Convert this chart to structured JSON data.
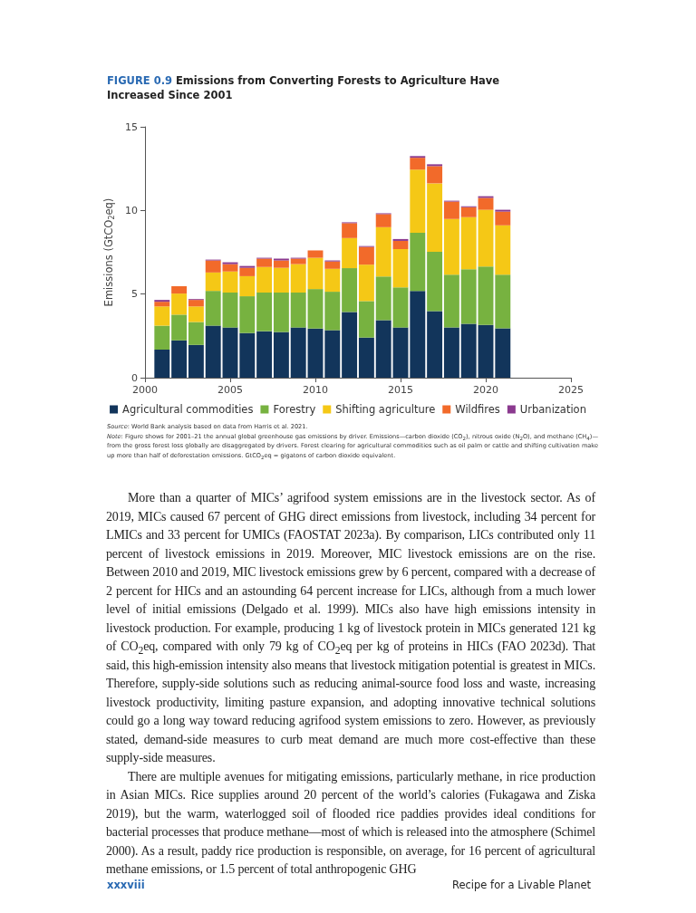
{
  "chart_data": {
    "type": "bar",
    "title": "FIGURE 0.9 Emissions from Converting Forests to Agriculture Have Increased Since 2001",
    "ylabel": "Emissions (GtCO$_{2}$eq)",
    "x": [
      2001,
      2002,
      2003,
      2004,
      2005,
      2006,
      2007,
      2008,
      2009,
      2010,
      2011,
      2012,
      2013,
      2014,
      2015,
      2016,
      2017,
      2018,
      2019,
      2020,
      2021
    ],
    "xlim": [
      2000,
      2025
    ],
    "xticks": [
      2000,
      2005,
      2010,
      2015,
      2020,
      2025
    ],
    "ylim": [
      0,
      15
    ],
    "yticks": [
      0,
      5,
      10,
      15
    ],
    "stacked": true,
    "grid": false,
    "legend": "bottom",
    "series": [
      {
        "name": "Agricultural commodities",
        "color": "#12355b",
        "values": [
          1.68,
          2.23,
          1.96,
          3.11,
          3.0,
          2.67,
          2.78,
          2.73,
          3.0,
          2.94,
          2.84,
          3.93,
          2.4,
          3.44,
          3.0,
          5.18,
          3.98,
          3.0,
          3.22,
          3.16,
          2.95
        ]
      },
      {
        "name": "Forestry",
        "color": "#77b240",
        "values": [
          1.43,
          1.54,
          1.37,
          2.08,
          2.09,
          2.2,
          2.31,
          2.36,
          2.09,
          2.36,
          2.3,
          2.62,
          2.18,
          2.61,
          2.4,
          3.49,
          3.55,
          3.16,
          3.27,
          3.49,
          3.21
        ]
      },
      {
        "name": "Shifting agriculture",
        "color": "#f5c816",
        "values": [
          1.15,
          1.26,
          0.93,
          1.1,
          1.26,
          1.2,
          1.53,
          1.48,
          1.7,
          1.87,
          1.37,
          1.8,
          2.18,
          2.95,
          2.29,
          3.77,
          4.09,
          3.33,
          3.11,
          3.39,
          2.95
        ]
      },
      {
        "name": "Wildfires",
        "color": "#f26a2a",
        "values": [
          0.28,
          0.44,
          0.39,
          0.72,
          0.44,
          0.5,
          0.5,
          0.44,
          0.33,
          0.44,
          0.44,
          0.89,
          1.06,
          0.78,
          0.49,
          0.71,
          1.03,
          1.04,
          0.6,
          0.71,
          0.82
        ]
      },
      {
        "name": "Urbanization",
        "color": "#8b3a8f",
        "values": [
          0.11,
          0,
          0.05,
          0.05,
          0.11,
          0.11,
          0.05,
          0.11,
          0.05,
          0,
          0.06,
          0.05,
          0.05,
          0.05,
          0.11,
          0.1,
          0.11,
          0.05,
          0.05,
          0.1,
          0.11
        ]
      }
    ],
    "annotations": [
      "Source: World Bank analysis based on data from Harris et al. 2021.",
      "Note: Figure shows for 2001–21 the annual global greenhouse gas emissions by driver. Emissions—carbon dioxide (CO$_{2}$), nitrous oxide (N$_{2}$O), and methane (CH$_{4}$)—from the gross forest loss globally are disaggregated by drivers. Forest clearing for agricultural commodities such as oil palm or cattle and shifting cultivation make up more than half of deforestation emissions. GtCO$_{2}$eq = gigatons of carbon dioxide equivalent.",
      "More than a quarter of MICs’ agrifood system emissions are in the livestock sector. As of 2019, MICs caused 67 percent of GHG direct emissions from livestock, including 34 percent for LMICs and 33 percent for UMICs (FAOSTAT 2023a). By comparison, LICs contributed only 11 percent of livestock emissions in 2019. Moreover, MIC livestock emissions are on the rise. Between 2010 and 2019, MIC livestock emissions grew by 6 percent, compared with a decrease of 2 percent for HICs and an astounding 64 percent increase for LICs, although from a much lower level of initial emissions (Delgado et al. 1999). MICs also have high emissions intensity in livestock production. For example, producing 1 kg of livestock protein in MICs generated 121 kg of CO$_{2}$eq, compared with only 79 kg of CO$_{2}$eq per kg of proteins in HICs (FAO 2023d). That said, this high-emission intensity also means that livestock mitigation potential is greatest in MICs. Therefore, supply-side solutions such as reducing animal-source food loss and waste, increasing livestock productivity, limiting pasture expansion, and adopting innovative technical solutions could go a long way toward reducing agrifood system emissions to zero. However, as previously stated, demand-side measures to curb meat demand are much more cost-effective than these supply-side measures.",
      "There are multiple avenues for mitigating emissions, particularly methane, in rice production in Asian MICs. Rice supplies around 20 percent of the world’s calories (Fukagawa and Ziska 2019), but the warm, waterlogged soil of flooded rice paddies provides ideal conditions for bacterial processes that produce methane—most of which is released into the atmosphere (Schimel 2000). As a result, paddy rice production is responsible, on average, for 16 percent of agricultural methane emissions, or 1.5 percent of total anthropogenic GHG",
      "xxxviii",
      "Recipe for a Livable Planet"
    ]
  }
}
